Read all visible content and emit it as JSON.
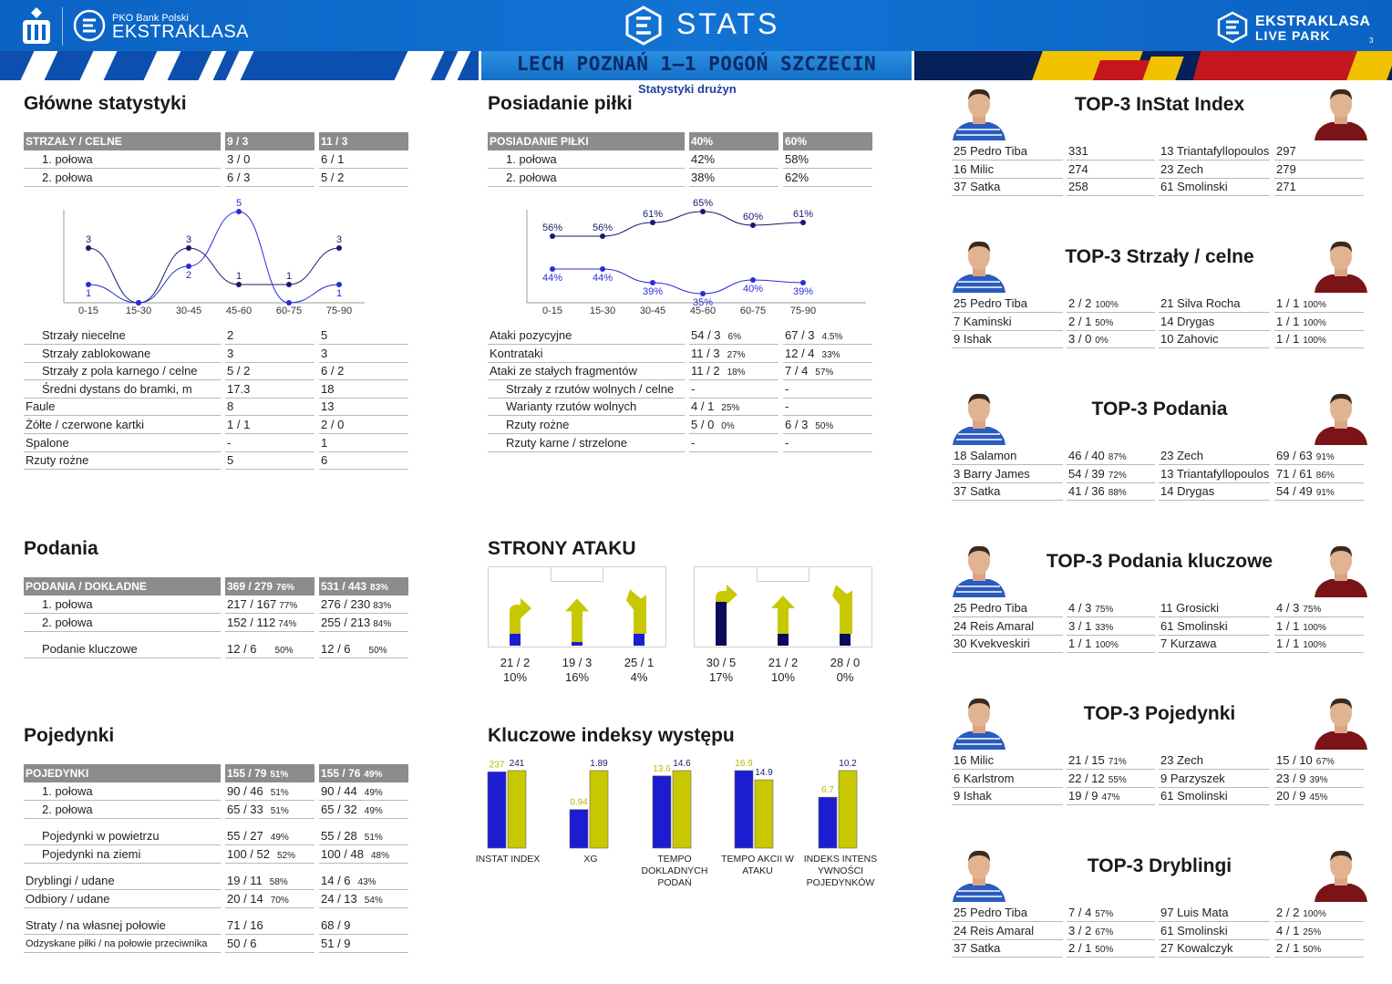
{
  "header": {
    "pko_line1": "PKO Bank Polski",
    "pko_line2": "EKSTRAKLASA",
    "stats_label": "STATS",
    "right_line1": "EKSTRAKLASA",
    "right_line2": "LIVE PARK",
    "page_number": "3",
    "match_title": "LECH POZNAŃ 1–1 POGOŃ SZCZECIN",
    "subtitle": "Statystyki drużyn",
    "colors": {
      "blue": "#0b63c4",
      "dark_blue": "#06205a",
      "yellow": "#f2c200",
      "red": "#c4161c"
    }
  },
  "main_stats": {
    "title": "Główne statystyki",
    "header": [
      "STRZAŁY / CELNE",
      "9 / 3",
      "11 / 3"
    ],
    "half_rows": [
      [
        "1. połowa",
        "3 / 0",
        "6 / 1"
      ],
      [
        "2. połowa",
        "6 / 3",
        "5 / 2"
      ]
    ],
    "rows": [
      [
        "Strzały niecelne",
        "2",
        "5"
      ],
      [
        "Strzały zablokowane",
        "3",
        "3"
      ],
      [
        "Strzały z pola karnego / celne",
        "5 / 2",
        "6 / 2"
      ],
      [
        "Średni dystans do bramki, m",
        "17.3",
        "18"
      ],
      [
        "Faule",
        "8",
        "13"
      ],
      [
        "Żółte / czerwone kartki",
        "1 / 1",
        "2 / 0"
      ],
      [
        "Spalone",
        "-",
        "1"
      ],
      [
        "Rzuty rożne",
        "5",
        "6"
      ]
    ],
    "indented": [
      true,
      true,
      true,
      true,
      false,
      false,
      false,
      false
    ]
  },
  "shots_chart": {
    "type": "line",
    "categories": [
      "0-15",
      "15-30",
      "30-45",
      "45-60",
      "60-75",
      "75-90"
    ],
    "series": [
      {
        "values": [
          3,
          0,
          3,
          1,
          1,
          3
        ],
        "color": "#1a1a6e",
        "labels": [
          "3",
          "",
          "3",
          "1",
          "1",
          "3"
        ]
      },
      {
        "values": [
          1,
          0,
          2,
          5,
          0,
          1
        ],
        "color": "#2b2bd9",
        "labels": [
          "1",
          "",
          "2",
          "5",
          "",
          "1"
        ]
      }
    ],
    "ylim": [
      0,
      5
    ]
  },
  "possession": {
    "title": "Posiadanie piłki",
    "header": [
      "POSIADANIE PIŁKI",
      "40%",
      "60%"
    ],
    "half_rows": [
      [
        "1. połowa",
        "42%",
        "58%"
      ],
      [
        "2. połowa",
        "38%",
        "62%"
      ]
    ],
    "rows": [
      {
        "label": "Ataki pozycyjne",
        "a": "54 / 3",
        "ap": "6%",
        "b": "67 / 3",
        "bp": "4.5%",
        "indent": false
      },
      {
        "label": "Kontrataki",
        "a": "11 / 3",
        "ap": "27%",
        "b": "12 / 4",
        "bp": "33%",
        "indent": false
      },
      {
        "label": "Ataki ze stałych fragmentów",
        "a": "11 / 2",
        "ap": "18%",
        "b": "7 / 4",
        "bp": "57%",
        "indent": false
      },
      {
        "label": "Strzały z rzutów wolnych / celne",
        "a": "-",
        "ap": "",
        "b": "-",
        "bp": "",
        "indent": true
      },
      {
        "label": "Warianty rzutów wolnych",
        "a": "4 / 1",
        "ap": "25%",
        "b": "-",
        "bp": "",
        "indent": true
      },
      {
        "label": "Rzuty rożne",
        "a": "5 / 0",
        "ap": "0%",
        "b": "6 / 3",
        "bp": "50%",
        "indent": true
      },
      {
        "label": "Rzuty karne / strzelone",
        "a": "-",
        "ap": "",
        "b": "-",
        "bp": "",
        "indent": true
      }
    ]
  },
  "possession_chart": {
    "type": "line",
    "categories": [
      "0-15",
      "15-30",
      "30-45",
      "45-60",
      "60-75",
      "75-90"
    ],
    "series": [
      {
        "values": [
          56,
          56,
          61,
          65,
          60,
          61
        ],
        "labels": [
          "56%",
          "56%",
          "61%",
          "65%",
          "60%",
          "61%"
        ],
        "color": "#1a1a6e"
      },
      {
        "values": [
          44,
          44,
          39,
          35,
          40,
          39
        ],
        "labels": [
          "44%",
          "44%",
          "39%",
          "35%",
          "40%",
          "39%"
        ],
        "color": "#2b2bd9"
      }
    ],
    "ylim": [
      30,
      70
    ]
  },
  "passes": {
    "title": "Podania",
    "header": [
      {
        "text": "PODANIA / DOKŁADNE",
        "pct": ""
      },
      {
        "text": "369 / 279",
        "pct": "76%"
      },
      {
        "text": "531 / 443",
        "pct": "83%"
      }
    ],
    "rows": [
      {
        "label": "1. połowa",
        "a": "217 / 167",
        "ap": "77%",
        "b": "276 / 230",
        "bp": "83%"
      },
      {
        "label": "2. połowa",
        "a": "152 / 112",
        "ap": "74%",
        "b": "255 / 213",
        "bp": "84%"
      },
      {
        "label": "Podanie kluczowe",
        "a": "12 / 6",
        "ap": "50%",
        "b": "12 / 6",
        "bp": "50%"
      }
    ]
  },
  "duels": {
    "title": "Pojedynki",
    "header": [
      {
        "text": "POJEDYNKI",
        "pct": ""
      },
      {
        "text": "155 / 79",
        "pct": "51%"
      },
      {
        "text": "155 / 76",
        "pct": "49%"
      }
    ],
    "rows": [
      {
        "label": "1. połowa",
        "a": "90 / 46",
        "ap": "51%",
        "b": "90 / 44",
        "bp": "49%"
      },
      {
        "label": "2. połowa",
        "a": "65 / 33",
        "ap": "51%",
        "b": "65 / 32",
        "bp": "49%"
      },
      {
        "label": "Pojedynki w powietrzu",
        "a": "55 / 27",
        "ap": "49%",
        "b": "55 / 28",
        "bp": "51%"
      },
      {
        "label": "Pojedynki na ziemi",
        "a": "100 / 52",
        "ap": "52%",
        "b": "100 / 48",
        "bp": "48%"
      },
      {
        "label": "Dryblingi / udane",
        "a": "19 / 11",
        "ap": "58%",
        "b": "14 / 6",
        "bp": "43%"
      },
      {
        "label": "Odbiory / udane",
        "a": "20 / 14",
        "ap": "70%",
        "b": "24 / 13",
        "bp": "54%"
      },
      {
        "label": "Straty / na własnej połowie",
        "a": "71 / 16",
        "ap": "",
        "b": "68 / 9",
        "bp": ""
      },
      {
        "label": "Odzyskane piłki / na połowie przeciwnika",
        "a": "50 / 6",
        "ap": "",
        "b": "51 / 9",
        "bp": ""
      }
    ]
  },
  "attack_sides": {
    "title": "STRONY ATAKU",
    "teams": [
      {
        "lanes": [
          {
            "count": "21 / 2",
            "pct": "10%",
            "value": 21
          },
          {
            "count": "19 / 3",
            "pct": "16%",
            "value": 19
          },
          {
            "count": "25 / 1",
            "pct": "4%",
            "value": 25
          }
        ],
        "base_color": "#1c1cd0",
        "arrow_color": "#c8c800"
      },
      {
        "lanes": [
          {
            "count": "30 / 5",
            "pct": "17%",
            "value": 30
          },
          {
            "count": "21 / 2",
            "pct": "10%",
            "value": 21
          },
          {
            "count": "28 / 0",
            "pct": "0%",
            "value": 28
          }
        ],
        "base_color": "#0a0a5a",
        "arrow_color": "#c8c800"
      }
    ]
  },
  "kpi": {
    "title": "Kluczowe indeksy występu",
    "chart_data": {
      "type": "bar",
      "categories": [
        "INSTAT INDEX",
        "XG",
        "TEMPO DOKLADNYCH PODAŃ",
        "TEMPO AKCII W ATAKU",
        "INDEKS INTENS YWNOŚCI POJEDYNKÓW"
      ],
      "labels": [
        [
          "INSTAT INDEX"
        ],
        [
          "XG"
        ],
        [
          "TEMPO",
          "DOKLADNYCH",
          "PODAŃ"
        ],
        [
          "TEMPO AKCII W",
          "ATAKU"
        ],
        [
          "INDEKS INTENS",
          "YWNOŚCI",
          "POJEDYNKÓW"
        ]
      ],
      "series": [
        {
          "values": [
            237,
            0.94,
            13.6,
            16.9,
            6.7
          ],
          "labels": [
            "237",
            "0.94",
            "13.6",
            "16.9",
            "6.7"
          ],
          "color": "#1c1cd0",
          "label_color": "#b8b800"
        },
        {
          "values": [
            241,
            1.89,
            14.6,
            14.9,
            10.2
          ],
          "labels": [
            "241",
            "1.89",
            "14.6",
            "14.9",
            "10.2"
          ],
          "color": "#c8c800",
          "label_color": "#1a1a6e"
        }
      ]
    }
  },
  "tops": [
    {
      "title": "TOP-3 InStat Index",
      "rows": [
        {
          "a_name": "25 Pedro Tiba",
          "a_val": "331",
          "a_pct": "",
          "b_name": "13 Triantafyllopoulos",
          "b_val": "297",
          "b_pct": ""
        },
        {
          "a_name": "16 Milic",
          "a_val": "274",
          "a_pct": "",
          "b_name": "23 Zech",
          "b_val": "279",
          "b_pct": ""
        },
        {
          "a_name": "37 Satka",
          "a_val": "258",
          "a_pct": "",
          "b_name": "61 Smolinski",
          "b_val": "271",
          "b_pct": ""
        }
      ]
    },
    {
      "title": "TOP-3 Strzały / celne",
      "rows": [
        {
          "a_name": "25 Pedro Tiba",
          "a_val": "2 / 2",
          "a_pct": "100%",
          "b_name": "21 Silva Rocha",
          "b_val": "1 / 1",
          "b_pct": "100%"
        },
        {
          "a_name": "7  Kaminski",
          "a_val": "2 / 1",
          "a_pct": "50%",
          "b_name": "14 Drygas",
          "b_val": "1 / 1",
          "b_pct": "100%"
        },
        {
          "a_name": "9  Ishak",
          "a_val": "3 / 0",
          "a_pct": "0%",
          "b_name": "10 Zahovic",
          "b_val": "1 / 1",
          "b_pct": "100%"
        }
      ]
    },
    {
      "title": "TOP-3 Podania",
      "rows": [
        {
          "a_name": "18 Salamon",
          "a_val": "46 / 40",
          "a_pct": "87%",
          "b_name": "23 Zech",
          "b_val": "69 / 63",
          "b_pct": "91%"
        },
        {
          "a_name": "3  Barry James",
          "a_val": "54 / 39",
          "a_pct": "72%",
          "b_name": "13 Triantafyllopoulos",
          "b_val": "71 / 61",
          "b_pct": "86%"
        },
        {
          "a_name": "37 Satka",
          "a_val": "41 / 36",
          "a_pct": "88%",
          "b_name": "14 Drygas",
          "b_val": "54 / 49",
          "b_pct": "91%"
        }
      ]
    },
    {
      "title": "TOP-3 Podania kluczowe",
      "rows": [
        {
          "a_name": "25 Pedro Tiba",
          "a_val": "4 / 3",
          "a_pct": "75%",
          "b_name": "11 Grosicki",
          "b_val": "4 / 3",
          "b_pct": "75%"
        },
        {
          "a_name": "24 Reis Amaral",
          "a_val": "3 / 1",
          "a_pct": "33%",
          "b_name": "61 Smolinski",
          "b_val": "1 / 1",
          "b_pct": "100%"
        },
        {
          "a_name": "30 Kvekveskiri",
          "a_val": "1 / 1",
          "a_pct": "100%",
          "b_name": "7  Kurzawa",
          "b_val": "1 / 1",
          "b_pct": "100%"
        }
      ]
    },
    {
      "title": "TOP-3 Pojedynki",
      "rows": [
        {
          "a_name": "16 Milic",
          "a_val": "21 / 15",
          "a_pct": "71%",
          "b_name": "23 Zech",
          "b_val": "15 / 10",
          "b_pct": "67%"
        },
        {
          "a_name": "6  Karlstrom",
          "a_val": "22 / 12",
          "a_pct": "55%",
          "b_name": "9  Parzyszek",
          "b_val": "23 / 9",
          "b_pct": "39%"
        },
        {
          "a_name": "9  Ishak",
          "a_val": "19 / 9",
          "a_pct": "47%",
          "b_name": "61 Smolinski",
          "b_val": "20 / 9",
          "b_pct": "45%"
        }
      ]
    },
    {
      "title": "TOP-3 Dryblingi",
      "rows": [
        {
          "a_name": "25 Pedro Tiba",
          "a_val": "7 / 4",
          "a_pct": "57%",
          "b_name": "97 Luis Mata",
          "b_val": "2 / 2",
          "b_pct": "100%"
        },
        {
          "a_name": "24 Reis Amaral",
          "a_val": "3 / 2",
          "a_pct": "67%",
          "b_name": "61 Smolinski",
          "b_val": "4 / 1",
          "b_pct": "25%"
        },
        {
          "a_name": "37 Satka",
          "a_val": "2 / 1",
          "a_pct": "50%",
          "b_name": "27 Kowalczyk",
          "b_val": "2 / 1",
          "b_pct": "50%"
        }
      ]
    }
  ]
}
